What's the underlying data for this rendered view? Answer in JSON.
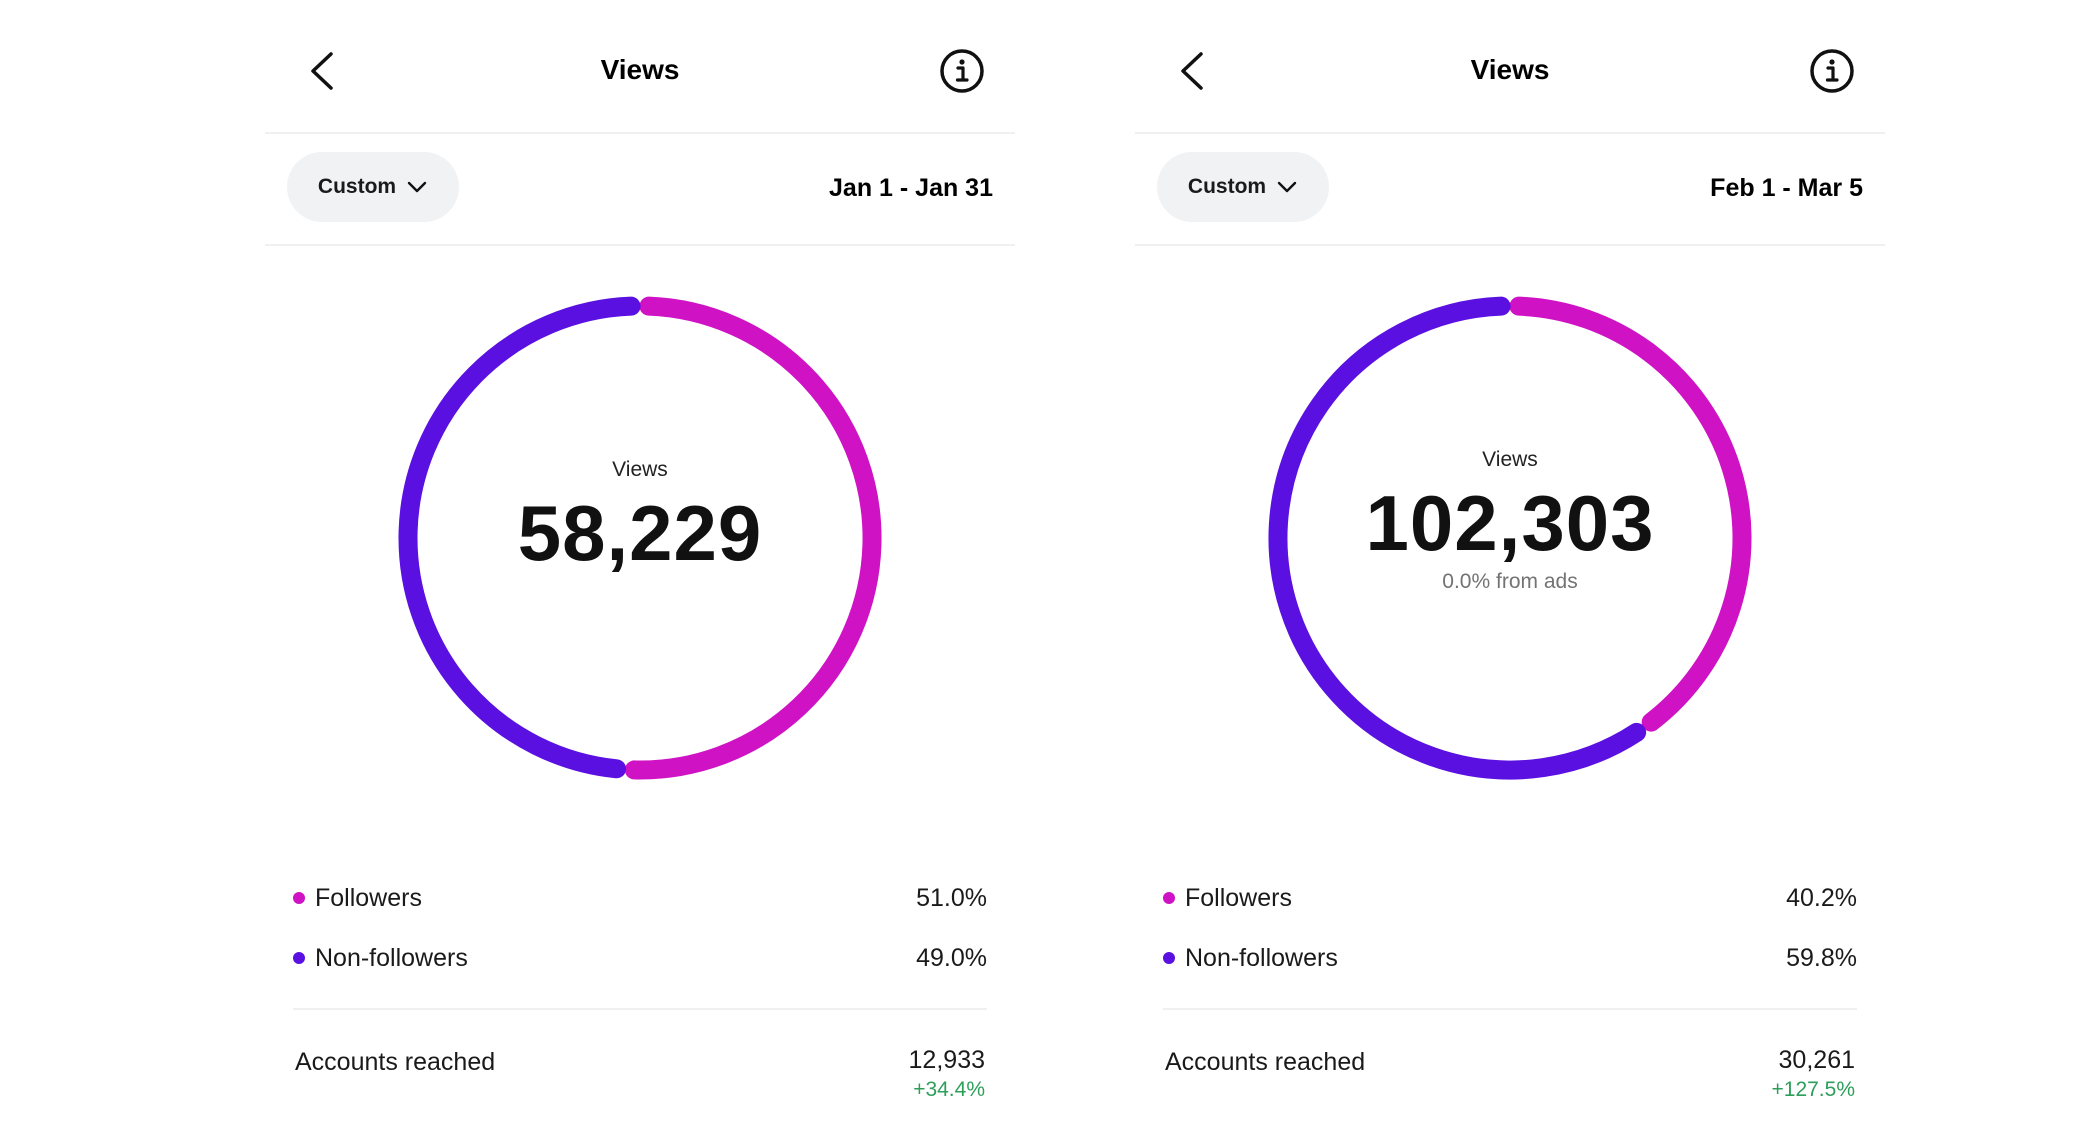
{
  "colors": {
    "followers": "#cf12c4",
    "non_followers": "#5a10e0",
    "positive_change": "#2e9e5b"
  },
  "panels": [
    {
      "header": {
        "title": "Views",
        "back_icon": "chevron-left-icon",
        "info_icon": "info-icon"
      },
      "filter": {
        "label": "Custom",
        "date_range": "Jan 1 - Jan 31"
      },
      "center": {
        "label": "Views",
        "value": "58,229",
        "sub": ""
      },
      "legend": [
        {
          "label": "Followers",
          "value": "51.0%",
          "percent": 51.0,
          "color": "#cf12c4"
        },
        {
          "label": "Non-followers",
          "value": "49.0%",
          "percent": 49.0,
          "color": "#5a10e0"
        }
      ],
      "accounts_reached": {
        "label": "Accounts reached",
        "value": "12,933",
        "change": "+34.4%"
      }
    },
    {
      "header": {
        "title": "Views",
        "back_icon": "chevron-left-icon",
        "info_icon": "info-icon"
      },
      "filter": {
        "label": "Custom",
        "date_range": "Feb 1 - Mar 5"
      },
      "center": {
        "label": "Views",
        "value": "102,303",
        "sub": "0.0% from ads"
      },
      "legend": [
        {
          "label": "Followers",
          "value": "40.2%",
          "percent": 40.2,
          "color": "#cf12c4"
        },
        {
          "label": "Non-followers",
          "value": "59.8%",
          "percent": 59.8,
          "color": "#5a10e0"
        }
      ],
      "accounts_reached": {
        "label": "Accounts reached",
        "value": "30,261",
        "change": "+127.5%"
      }
    }
  ]
}
